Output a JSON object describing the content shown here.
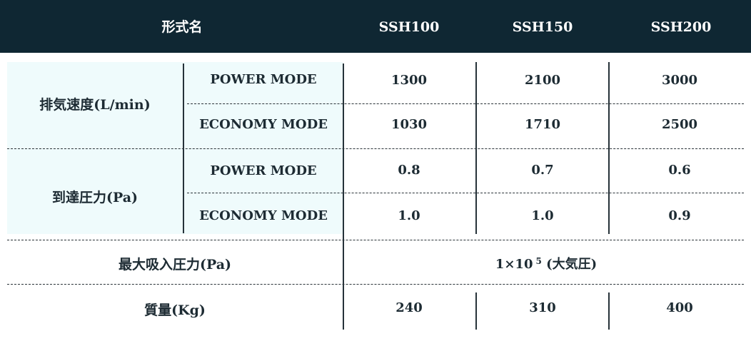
{
  "header": {
    "label": "形式名",
    "models": [
      "SSH100",
      "SSH150",
      "SSH200"
    ]
  },
  "rows": {
    "exhaust": {
      "label": "排気速度(L/min)",
      "power_label": "POWER MODE",
      "economy_label": "ECONOMY MODE",
      "power_values": [
        "1300",
        "2100",
        "3000"
      ],
      "economy_values": [
        "1030",
        "1710",
        "2500"
      ]
    },
    "ultimate": {
      "label": "到達圧力(Pa)",
      "power_label": "POWER MODE",
      "economy_label": "ECONOMY MODE",
      "power_values": [
        "0.8",
        "0.7",
        "0.6"
      ],
      "economy_values": [
        "1.0",
        "1.0",
        "0.9"
      ]
    },
    "max_suction": {
      "label": "最大吸入圧力(Pa)",
      "value_base": "1×10",
      "value_exp": "5",
      "value_note": "(大気圧)"
    },
    "mass": {
      "label": "質量(Kg)",
      "values": [
        "240",
        "310",
        "400"
      ]
    }
  },
  "colors": {
    "header_bg": "#0f2733",
    "label_bg": "#effbfc",
    "text": "#1d2b33"
  }
}
